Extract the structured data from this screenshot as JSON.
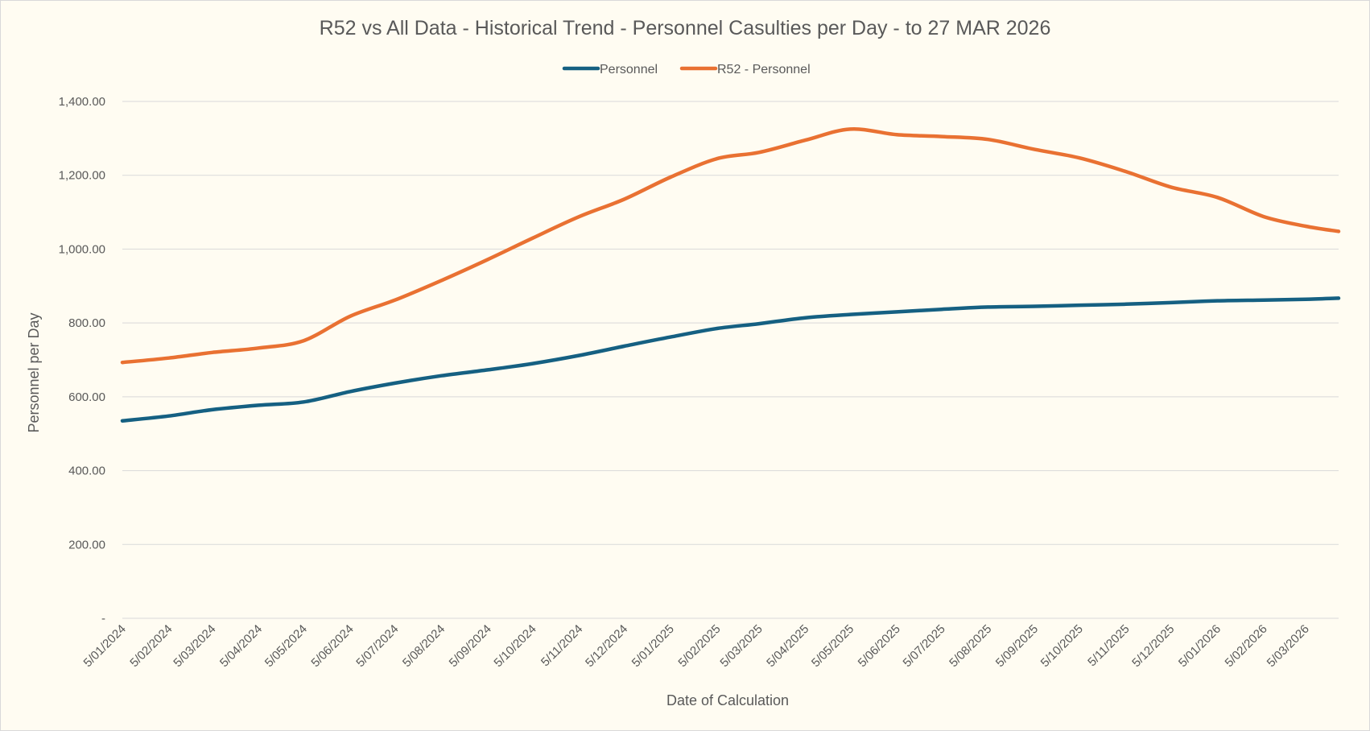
{
  "chart_data": {
    "type": "line",
    "title": "R52 vs All Data - Historical Trend - Personnel Casulties per Day - to 27 MAR 2026",
    "xlabel": "Date of Calculation",
    "ylabel": "Personnel per Day",
    "x_range": [
      "2024-01-05",
      "2026-03-27"
    ],
    "ylim": [
      0,
      1400
    ],
    "y_ticks": [
      0,
      200,
      400,
      600,
      800,
      1000,
      1200,
      1400
    ],
    "y_tick_labels": [
      "-",
      "200.00",
      "400.00",
      "600.00",
      "800.00",
      "1,000.00",
      "1,200.00",
      "1,400.00"
    ],
    "x_ticks": [
      "2024-01-05",
      "2024-02-05",
      "2024-03-05",
      "2024-04-05",
      "2024-05-05",
      "2024-06-05",
      "2024-07-05",
      "2024-08-05",
      "2024-09-05",
      "2024-10-05",
      "2024-11-05",
      "2024-12-05",
      "2025-01-05",
      "2025-02-05",
      "2025-03-05",
      "2025-04-05",
      "2025-05-05",
      "2025-06-05",
      "2025-07-05",
      "2025-08-05",
      "2025-09-05",
      "2025-10-05",
      "2025-11-05",
      "2025-12-05",
      "2026-01-05",
      "2026-02-05",
      "2026-03-05"
    ],
    "x_tick_labels": [
      "5/01/2024",
      "5/02/2024",
      "5/03/2024",
      "5/04/2024",
      "5/05/2024",
      "5/06/2024",
      "5/07/2024",
      "5/08/2024",
      "5/09/2024",
      "5/10/2024",
      "5/11/2024",
      "5/12/2024",
      "5/01/2025",
      "5/02/2025",
      "5/03/2025",
      "5/04/2025",
      "5/05/2025",
      "5/06/2025",
      "5/07/2025",
      "5/08/2025",
      "5/09/2025",
      "5/10/2025",
      "5/11/2025",
      "5/12/2025",
      "5/01/2026",
      "5/02/2026",
      "5/03/2026"
    ],
    "grid": true,
    "legend_position": "top",
    "series": [
      {
        "name": "Personnel",
        "color": "#156082",
        "points": [
          [
            "2024-01-05",
            535
          ],
          [
            "2024-02-05",
            548
          ],
          [
            "2024-03-05",
            565
          ],
          [
            "2024-04-05",
            577
          ],
          [
            "2024-05-05",
            586
          ],
          [
            "2024-06-05",
            614
          ],
          [
            "2024-07-05",
            637
          ],
          [
            "2024-08-05",
            657
          ],
          [
            "2024-09-05",
            673
          ],
          [
            "2024-10-05",
            690
          ],
          [
            "2024-11-05",
            712
          ],
          [
            "2024-12-05",
            737
          ],
          [
            "2025-01-05",
            762
          ],
          [
            "2025-02-05",
            785
          ],
          [
            "2025-03-05",
            798
          ],
          [
            "2025-04-05",
            814
          ],
          [
            "2025-05-05",
            823
          ],
          [
            "2025-06-05",
            830
          ],
          [
            "2025-07-05",
            837
          ],
          [
            "2025-08-05",
            843
          ],
          [
            "2025-09-05",
            845
          ],
          [
            "2025-10-05",
            848
          ],
          [
            "2025-11-05",
            851
          ],
          [
            "2025-12-05",
            855
          ],
          [
            "2026-01-05",
            860
          ],
          [
            "2026-02-05",
            862
          ],
          [
            "2026-03-05",
            864
          ],
          [
            "2026-03-27",
            867
          ]
        ]
      },
      {
        "name": "R52 - Personnel",
        "color": "#e97132",
        "points": [
          [
            "2024-01-05",
            693
          ],
          [
            "2024-02-05",
            705
          ],
          [
            "2024-03-05",
            720
          ],
          [
            "2024-04-05",
            732
          ],
          [
            "2024-05-05",
            752
          ],
          [
            "2024-06-05",
            818
          ],
          [
            "2024-07-05",
            862
          ],
          [
            "2024-08-05",
            915
          ],
          [
            "2024-09-05",
            972
          ],
          [
            "2024-10-05",
            1030
          ],
          [
            "2024-11-05",
            1088
          ],
          [
            "2024-12-05",
            1135
          ],
          [
            "2025-01-05",
            1195
          ],
          [
            "2025-02-05",
            1245
          ],
          [
            "2025-03-05",
            1262
          ],
          [
            "2025-04-05",
            1295
          ],
          [
            "2025-05-05",
            1325
          ],
          [
            "2025-06-05",
            1310
          ],
          [
            "2025-07-05",
            1305
          ],
          [
            "2025-08-05",
            1297
          ],
          [
            "2025-09-05",
            1270
          ],
          [
            "2025-10-05",
            1247
          ],
          [
            "2025-11-05",
            1210
          ],
          [
            "2025-12-05",
            1168
          ],
          [
            "2026-01-05",
            1140
          ],
          [
            "2026-02-05",
            1088
          ],
          [
            "2026-03-05",
            1062
          ],
          [
            "2026-03-27",
            1048
          ]
        ]
      }
    ]
  }
}
